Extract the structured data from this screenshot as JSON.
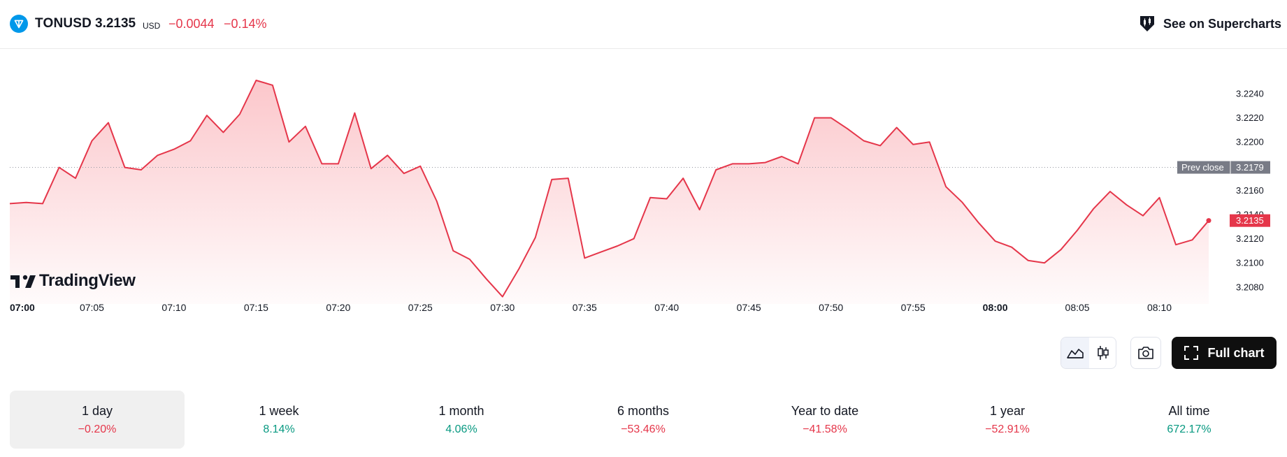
{
  "header": {
    "symbol": "TONUSD",
    "price": "3.2135",
    "currency": "USD",
    "change": "−0.0044",
    "change_percent": "−0.14%",
    "supercharts_label": "See on Supercharts"
  },
  "colors": {
    "line": "#e5364a",
    "negative": "#e5364a",
    "positive": "#089981",
    "brand_ton": "#0098ea",
    "prev_close_tag": "#787b86"
  },
  "chart_data": {
    "type": "area",
    "x_tick_labels": [
      "07:00",
      "07:05",
      "07:10",
      "07:15",
      "07:20",
      "07:25",
      "07:30",
      "07:35",
      "07:40",
      "07:45",
      "07:50",
      "07:55",
      "08:00",
      "08:05",
      "08:10"
    ],
    "x_tick_bold": [
      "07:00",
      "08:00"
    ],
    "x_minutes_from_0700": [
      0,
      1,
      2,
      3,
      4,
      5,
      6,
      7,
      8,
      9,
      10,
      11,
      12,
      13,
      14,
      15,
      16,
      17,
      18,
      19,
      20,
      21,
      22,
      23,
      24,
      25,
      26,
      27,
      28,
      29,
      30,
      31,
      32,
      33,
      34,
      35,
      36,
      37,
      38,
      39,
      40,
      41,
      42,
      43,
      44,
      45,
      46,
      47,
      48,
      49,
      50,
      51,
      52,
      53,
      54,
      55,
      56,
      57,
      58,
      59,
      60,
      61,
      62,
      63,
      64,
      65,
      66,
      67,
      68,
      69,
      70,
      71,
      72,
      73
    ],
    "values": [
      3.2149,
      3.215,
      3.2149,
      3.2179,
      3.217,
      3.2201,
      3.2216,
      3.2179,
      3.2177,
      3.2189,
      3.2194,
      3.2201,
      3.2222,
      3.2208,
      3.2223,
      3.2251,
      3.2247,
      3.22,
      3.2213,
      3.2182,
      3.2182,
      3.2224,
      3.2178,
      3.2189,
      3.2174,
      3.218,
      3.2151,
      3.211,
      3.2103,
      3.2087,
      3.2072,
      3.2095,
      3.2121,
      3.2169,
      3.217,
      3.2104,
      3.2109,
      3.2114,
      3.212,
      3.2154,
      3.2153,
      3.217,
      3.2144,
      3.2177,
      3.2182,
      3.2182,
      3.2183,
      3.2188,
      3.2182,
      3.222,
      3.222,
      3.2211,
      3.2201,
      3.2197,
      3.2212,
      3.2198,
      3.22,
      3.2163,
      3.215,
      3.2133,
      3.2118,
      3.2113,
      3.2102,
      3.21,
      3.2111,
      3.2127,
      3.2145,
      3.2159,
      3.2148,
      3.2139,
      3.2154,
      3.2115,
      3.2119,
      3.2135
    ],
    "y_ticks": [
      "3.2240",
      "3.2220",
      "3.2200",
      "3.2160",
      "3.2140",
      "3.2120",
      "3.2100",
      "3.2080"
    ],
    "ylim": [
      3.2066,
      3.2262
    ],
    "xlim_minutes": [
      0,
      73
    ],
    "prev_close": {
      "label": "Prev close",
      "value": "3.2179"
    },
    "last_price_label": "3.2135",
    "grid": false,
    "title": "",
    "xlabel": "",
    "ylabel": ""
  },
  "branding": {
    "watermark": "TradingView"
  },
  "toolbar": {
    "area_chart_icon": "area-chart-icon",
    "candles_icon": "candlestick-icon",
    "camera_icon": "camera-icon",
    "full_chart_label": "Full chart",
    "full_chart_icon": "fullscreen-icon"
  },
  "periods": [
    {
      "label": "1 day",
      "value": "−0.20%",
      "trend": "neg",
      "selected": true
    },
    {
      "label": "1 week",
      "value": "8.14%",
      "trend": "pos",
      "selected": false
    },
    {
      "label": "1 month",
      "value": "4.06%",
      "trend": "pos",
      "selected": false
    },
    {
      "label": "6 months",
      "value": "−53.46%",
      "trend": "neg",
      "selected": false
    },
    {
      "label": "Year to date",
      "value": "−41.58%",
      "trend": "neg",
      "selected": false
    },
    {
      "label": "1 year",
      "value": "−52.91%",
      "trend": "neg",
      "selected": false
    },
    {
      "label": "All time",
      "value": "672.17%",
      "trend": "pos",
      "selected": false
    }
  ]
}
